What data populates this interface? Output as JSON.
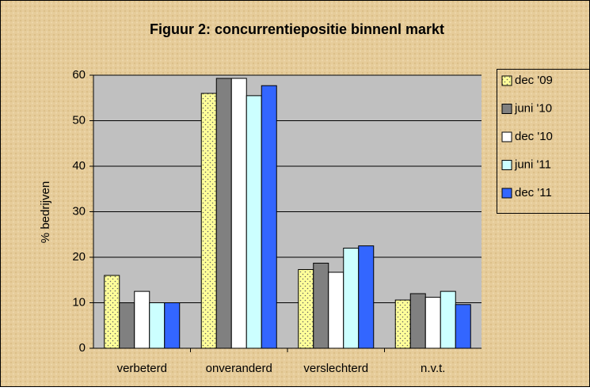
{
  "chart_data": {
    "type": "bar",
    "title": "Figuur 2: concurrentiepositie binnenl markt",
    "ylabel": "% bedrijven",
    "categories": [
      "verbeterd",
      "onveranderd",
      "verslechterd",
      "n.v.t."
    ],
    "series": [
      {
        "name": "dec '09",
        "color": "#ffff99",
        "values": [
          16,
          56,
          17.3,
          10.6
        ]
      },
      {
        "name": "juni '10",
        "color": "#808080",
        "values": [
          10,
          59.3,
          18.7,
          12
        ]
      },
      {
        "name": "dec '10",
        "color": "#ffffff",
        "values": [
          12.5,
          59.3,
          16.7,
          11.2
        ]
      },
      {
        "name": "juni '11",
        "color": "#ccffff",
        "values": [
          10,
          55.5,
          22,
          12.5
        ]
      },
      {
        "name": "dec '11",
        "color": "#3366ff",
        "values": [
          10,
          57.7,
          22.5,
          9.6
        ]
      }
    ],
    "ylim": [
      0,
      60
    ],
    "yticks": [
      0,
      10,
      20,
      30,
      40,
      50,
      60
    ],
    "grid": true,
    "legend": "right"
  }
}
